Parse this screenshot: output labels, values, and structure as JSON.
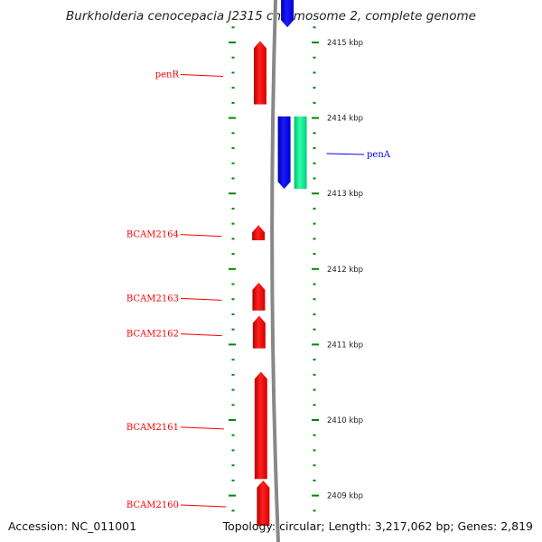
{
  "title": "Burkholderia cenocepacia J2315 chromosome 2, complete genome",
  "footer": {
    "accession": "Accession: NC_011001",
    "summary": "Topology: circular; Length: 3,217,062 bp; Genes: 2,819"
  },
  "colors": {
    "reverse_strand": "#ff0000",
    "forward_strand": "#0000ff",
    "extra_feature": "#00e68a",
    "ticks": "#008800",
    "backbone": "#888888"
  },
  "scale": {
    "unit": "kbp",
    "ticks": [
      {
        "value": 2415,
        "label": "2415 kbp"
      },
      {
        "value": 2414,
        "label": "2414 kbp"
      },
      {
        "value": 2413,
        "label": "2413 kbp"
      },
      {
        "value": 2412,
        "label": "2412 kbp"
      },
      {
        "value": 2411,
        "label": "2411 kbp"
      },
      {
        "value": 2410,
        "label": "2410 kbp"
      },
      {
        "value": 2409,
        "label": "2409 kbp"
      }
    ]
  },
  "genes": [
    {
      "name": "penR",
      "start": 2414.18,
      "end": 2415.02,
      "strand": "reverse",
      "color": "#ff0000",
      "labeled": true
    },
    {
      "name": "penA",
      "start": 2413.06,
      "end": 2414.02,
      "strand": "forward",
      "color": "#0000ff",
      "labeled": true
    },
    {
      "name": "",
      "start": 2413.06,
      "end": 2414.02,
      "strand": "none",
      "color": "#00e68a",
      "labeled": false
    },
    {
      "name": "BCAM2164",
      "start": 2412.38,
      "end": 2412.58,
      "strand": "reverse",
      "color": "#ff0000",
      "labeled": true
    },
    {
      "name": "BCAM2163",
      "start": 2411.45,
      "end": 2411.82,
      "strand": "reverse",
      "color": "#ff0000",
      "labeled": true
    },
    {
      "name": "BCAM2162",
      "start": 2410.95,
      "end": 2411.38,
      "strand": "reverse",
      "color": "#ff0000",
      "labeled": true
    },
    {
      "name": "BCAM2161",
      "start": 2409.22,
      "end": 2410.64,
      "strand": "reverse",
      "color": "#ff0000",
      "labeled": true
    },
    {
      "name": "BCAM2160",
      "start": 2408.6,
      "end": 2409.2,
      "strand": "reverse",
      "color": "#ff0000",
      "labeled": true
    },
    {
      "name": "",
      "start": 2415.2,
      "end": 2416.0,
      "strand": "forward",
      "color": "#0000ff",
      "labeled": false
    }
  ]
}
